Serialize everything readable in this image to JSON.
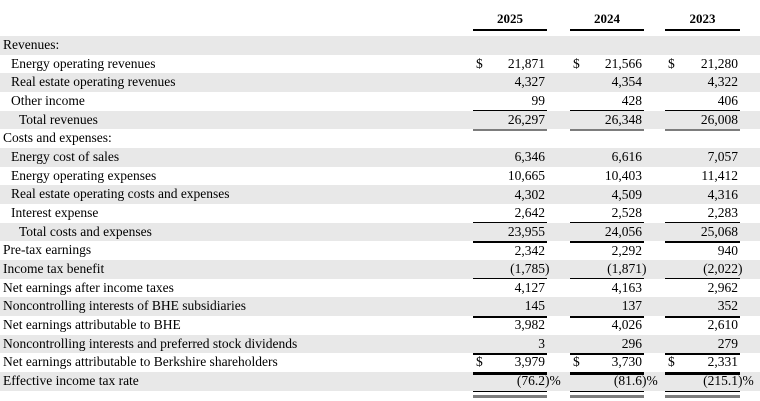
{
  "table": {
    "column_headers": [
      "2025",
      "2024",
      "2023"
    ],
    "currency_symbol": "$",
    "colors": {
      "stripe": "#e8e8e8",
      "rule_black": "#000000",
      "rule_gray": "#7d7d7d"
    },
    "rows": [
      {
        "label": "Revenues:",
        "indent": 0,
        "values": null,
        "dollar": false,
        "rule": "none",
        "final_rule": false
      },
      {
        "label": "Energy operating revenues",
        "indent": 1,
        "values": [
          "21,871",
          "21,566",
          "21,280"
        ],
        "dollar": true,
        "rule": "none",
        "final_rule": false
      },
      {
        "label": "Real estate operating revenues",
        "indent": 1,
        "values": [
          "4,327",
          "4,354",
          "4,322"
        ],
        "dollar": false,
        "rule": "none",
        "final_rule": false
      },
      {
        "label": "Other income",
        "indent": 1,
        "values": [
          "99",
          "428",
          "406"
        ],
        "dollar": false,
        "rule": "thin",
        "final_rule": false
      },
      {
        "label": "Total revenues",
        "indent": 2,
        "values": [
          "26,297",
          "26,348",
          "26,008"
        ],
        "dollar": false,
        "rule": "gray",
        "final_rule": false
      },
      {
        "label": "Costs and expenses:",
        "indent": 0,
        "values": null,
        "dollar": false,
        "rule": "none",
        "final_rule": false
      },
      {
        "label": "Energy cost of sales",
        "indent": 1,
        "values": [
          "6,346",
          "6,616",
          "7,057"
        ],
        "dollar": false,
        "rule": "none",
        "final_rule": false
      },
      {
        "label": "Energy operating expenses",
        "indent": 1,
        "values": [
          "10,665",
          "10,403",
          "11,412"
        ],
        "dollar": false,
        "rule": "none",
        "final_rule": false
      },
      {
        "label": "Real estate operating costs and expenses",
        "indent": 1,
        "values": [
          "4,302",
          "4,509",
          "4,316"
        ],
        "dollar": false,
        "rule": "none",
        "final_rule": false
      },
      {
        "label": "Interest expense",
        "indent": 1,
        "values": [
          "2,642",
          "2,528",
          "2,283"
        ],
        "dollar": false,
        "rule": "thin",
        "final_rule": false
      },
      {
        "label": "Total costs and expenses",
        "indent": 2,
        "values": [
          "23,955",
          "24,056",
          "25,068"
        ],
        "dollar": false,
        "rule": "thick",
        "final_rule": false
      },
      {
        "label": "Pre-tax earnings",
        "indent": 0,
        "values": [
          "2,342",
          "2,292",
          "940"
        ],
        "dollar": false,
        "rule": "none",
        "final_rule": false
      },
      {
        "label": "Income tax benefit",
        "indent": 0,
        "values": [
          "(1,785)",
          "(1,871)",
          "(2,022)"
        ],
        "dollar": false,
        "rule": "thin",
        "final_rule": false
      },
      {
        "label": "Net earnings after income taxes",
        "indent": 0,
        "values": [
          "4,127",
          "4,163",
          "2,962"
        ],
        "dollar": false,
        "rule": "none",
        "final_rule": false
      },
      {
        "label": "Noncontrolling interests of BHE subsidiaries",
        "indent": 0,
        "values": [
          "145",
          "137",
          "352"
        ],
        "dollar": false,
        "rule": "thick",
        "final_rule": false
      },
      {
        "label": "Net earnings attributable to BHE",
        "indent": 0,
        "values": [
          "3,982",
          "4,026",
          "2,610"
        ],
        "dollar": false,
        "rule": "none",
        "final_rule": false
      },
      {
        "label": "Noncontrolling interests and preferred stock dividends",
        "indent": 0,
        "values": [
          "3",
          "296",
          "279"
        ],
        "dollar": false,
        "rule": "thick",
        "final_rule": false
      },
      {
        "label": "Net earnings attributable to Berkshire shareholders",
        "indent": 0,
        "values": [
          "3,979",
          "3,730",
          "2,331"
        ],
        "dollar": true,
        "rule": "xthick",
        "final_rule": false
      },
      {
        "label": "Effective income tax rate",
        "indent": 0,
        "values": [
          "(76.2)%",
          "(81.6)%",
          "(215.1)%"
        ],
        "dollar": false,
        "rule": "thin",
        "final_rule": true
      }
    ]
  }
}
